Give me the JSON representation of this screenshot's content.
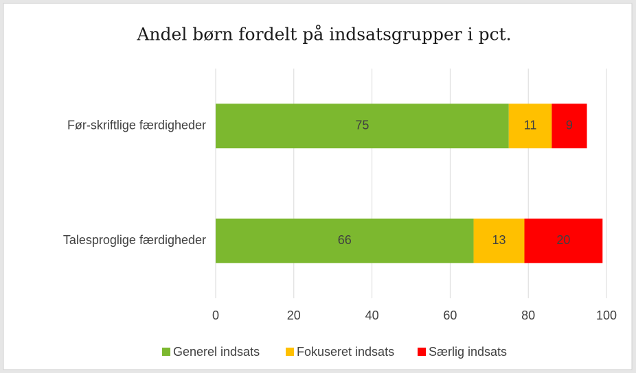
{
  "chart_data": {
    "type": "stacked_bar_horizontal",
    "title": "Andel børn fordelt på indsatsgrupper i pct.",
    "categories": [
      "Før-skriftlige færdigheder",
      "Talesproglige færdigheder"
    ],
    "series": [
      {
        "name": "Generel indsats",
        "color": "#7cb82f",
        "values": [
          75,
          66
        ]
      },
      {
        "name": "Fokuseret indsats",
        "color": "#ffc000",
        "values": [
          11,
          13
        ]
      },
      {
        "name": "Særlig indsats",
        "color": "#ff0000",
        "values": [
          9,
          20
        ]
      }
    ],
    "xlim": [
      0,
      100
    ],
    "xticks": [
      0,
      20,
      40,
      60,
      80,
      100
    ],
    "grid": true,
    "legend": "bottom"
  }
}
